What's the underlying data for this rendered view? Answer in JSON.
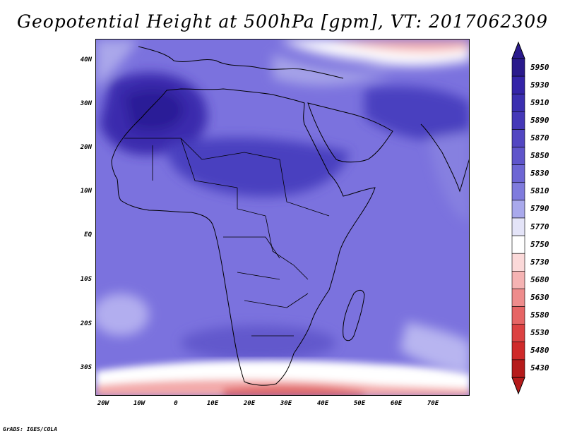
{
  "title": "Geopotential Height at 500hPa [gpm], VT: 2017062309",
  "credit": "GrADS: IGES/COLA",
  "latitude_ticks": [
    "40N",
    "30N",
    "20N",
    "10N",
    "EQ",
    "10S",
    "20S",
    "30S"
  ],
  "longitude_ticks": [
    "20W",
    "10W",
    "0",
    "10E",
    "20E",
    "30E",
    "40E",
    "50E",
    "60E",
    "70E"
  ],
  "colorbar": {
    "levels": [
      "5950",
      "5930",
      "5910",
      "5890",
      "5870",
      "5850",
      "5830",
      "5810",
      "5790",
      "5770",
      "5750",
      "5730",
      "5680",
      "5630",
      "5580",
      "5530",
      "5480",
      "5430"
    ],
    "colors": [
      "#2a1a8c",
      "#3424a8",
      "#3b2fb0",
      "#4538b8",
      "#5246c2",
      "#5f55cb",
      "#6d66d4",
      "#7f7bdd",
      "#a9a9ec",
      "#e4e4f8",
      "#ffffff",
      "#fbd9d9",
      "#f5b3b3",
      "#ee8c8c",
      "#e66565",
      "#dc4242",
      "#cf2a2a",
      "#b51b1b"
    ]
  },
  "map": {
    "region": "Africa and surrounding regions",
    "variable": "500hPa geopotential height",
    "units": "gpm",
    "valid_time": "2017062309"
  }
}
